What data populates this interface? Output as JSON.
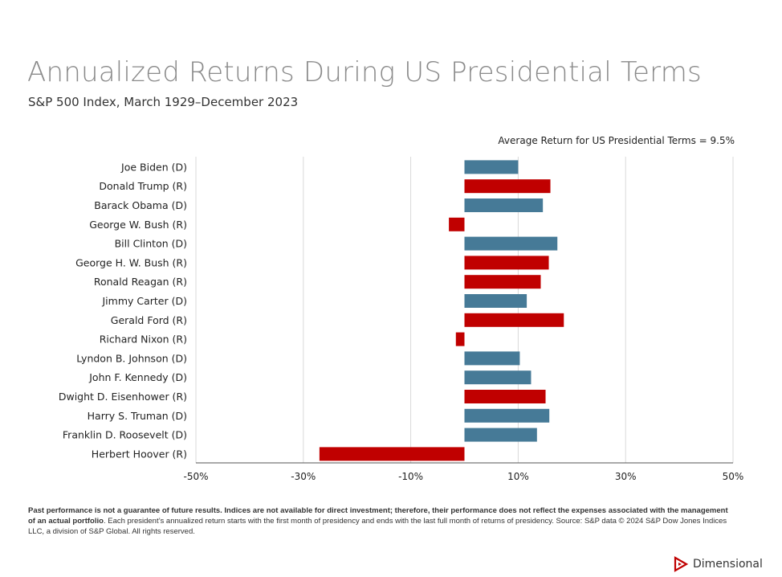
{
  "title": "Annualized Returns During US Presidential Terms",
  "subtitle": "S&P 500 Index, March 1929–December 2023",
  "annotation": "Average Return for US Presidential Terms = 9.5%",
  "colors": {
    "democrat": "#467a97",
    "republican": "#c00000",
    "grid": "#d9d9d9",
    "axis": "#555555"
  },
  "chart_data": {
    "type": "bar",
    "orientation": "horizontal",
    "xlim": [
      -50,
      50
    ],
    "x_ticks": [
      -50,
      -30,
      -10,
      10,
      30,
      50
    ],
    "x_tick_labels": [
      "-50%",
      "-30%",
      "-10%",
      "10%",
      "30%",
      "50%"
    ],
    "grid": true,
    "categories": [
      "Joe Biden (D)",
      "Donald Trump (R)",
      "Barack Obama (D)",
      "George W. Bush (R)",
      "Bill Clinton (D)",
      "George H. W. Bush (R)",
      "Ronald Reagan (R)",
      "Jimmy Carter (D)",
      "Gerald Ford (R)",
      "Richard Nixon (R)",
      "Lyndon B. Johnson (D)",
      "John F. Kennedy (D)",
      "Dwight D. Eisenhower (R)",
      "Harry S. Truman (D)",
      "Franklin D. Roosevelt (D)",
      "Herbert Hoover (R)"
    ],
    "values": [
      10.0,
      16.0,
      14.6,
      -2.9,
      17.3,
      15.7,
      14.2,
      11.6,
      18.5,
      -1.6,
      10.3,
      12.4,
      15.1,
      15.8,
      13.5,
      -27.0
    ],
    "party": [
      "D",
      "R",
      "D",
      "R",
      "D",
      "R",
      "R",
      "D",
      "R",
      "R",
      "D",
      "D",
      "R",
      "D",
      "D",
      "R"
    ]
  },
  "footnote": {
    "bold": "Past performance is not a guarantee of future results. Indices are not available for direct investment; therefore, their performance does not reflect the expenses associated with the management of an actual portfolio",
    "text": ". Each president’s annualized return starts with the first month of presidency and ends with the last full month of returns of presidency. Source: S&P data © 2024 S&P Dow Jones Indices LLC, a division of S&P Global. All rights reserved."
  },
  "logo": {
    "text": "Dimensional",
    "icon": "dimensional-logo-icon"
  }
}
